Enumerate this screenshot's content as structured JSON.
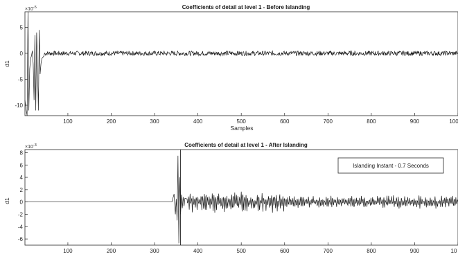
{
  "chart_data": [
    {
      "type": "line",
      "title": "Coefficients of detail at level 1 - Before Islanding",
      "xlabel": "Samples",
      "ylabel": "d1",
      "y_exponent_label": "×10",
      "y_exponent": "-5",
      "xlim": [
        1,
        1000
      ],
      "ylim": [
        -12,
        8
      ],
      "xticks": [
        "100",
        "200",
        "300",
        "400",
        "500",
        "600",
        "700",
        "800",
        "900",
        "100"
      ],
      "yticks": [
        "5",
        "0",
        "-5",
        "-10"
      ],
      "series": [
        {
          "x": [
            1,
            4,
            6,
            8,
            10,
            12,
            14,
            16,
            18,
            20,
            22,
            24,
            26,
            28,
            30,
            32,
            34,
            36,
            38,
            40,
            45,
            50,
            60,
            80,
            100,
            150,
            200,
            300,
            400,
            500,
            600,
            700,
            800,
            900,
            1000
          ],
          "y": [
            -9,
            -11,
            -12,
            8,
            -11,
            -3,
            -1,
            -0.5,
            0.5,
            -2,
            -9,
            3.5,
            -11,
            4,
            -3,
            -11,
            4.5,
            -4,
            -2,
            -1,
            -0.5,
            0.3,
            -0.3,
            0.2,
            -0.2,
            0.2,
            -0.2,
            0.2,
            -0.2,
            0.2,
            -0.2,
            0.2,
            -0.2,
            0.2,
            0
          ]
        }
      ],
      "grid": false
    },
    {
      "type": "line",
      "title": "Coefficients of detail at level 1 - After Islanding",
      "xlabel": "",
      "ylabel": "d1",
      "y_exponent_label": "×10",
      "y_exponent": "-3",
      "xlim": [
        1,
        1000
      ],
      "ylim": [
        -7,
        8.5
      ],
      "xticks": [
        "100",
        "200",
        "300",
        "400",
        "500",
        "600",
        "700",
        "800",
        "900",
        "10"
      ],
      "yticks": [
        "8",
        "6",
        "4",
        "2",
        "0",
        "-2",
        "-4",
        "-6"
      ],
      "annotation": {
        "x": 360,
        "text": "Islanding Instant - 0.7 Seconds"
      },
      "series": [
        {
          "x": [
            1,
            20,
            40,
            60,
            80,
            100,
            200,
            300,
            340,
            345,
            348,
            350,
            352,
            354,
            356,
            358,
            360,
            362,
            364,
            366,
            368,
            370,
            375,
            380,
            400,
            450,
            500,
            550,
            600,
            650,
            700,
            750,
            800,
            850,
            900,
            950,
            1000
          ],
          "y": [
            0,
            0,
            -0.1,
            0,
            0,
            0,
            0,
            0,
            0,
            1.3,
            -2,
            0.5,
            -3,
            7.5,
            -6.7,
            4,
            -2,
            1.2,
            -1,
            0.8,
            -0.7,
            0.6,
            0.5,
            0.3,
            0.2,
            0.1,
            0,
            0,
            0,
            0,
            0,
            0,
            0,
            0,
            0,
            0,
            0
          ]
        }
      ],
      "grid": false
    }
  ]
}
